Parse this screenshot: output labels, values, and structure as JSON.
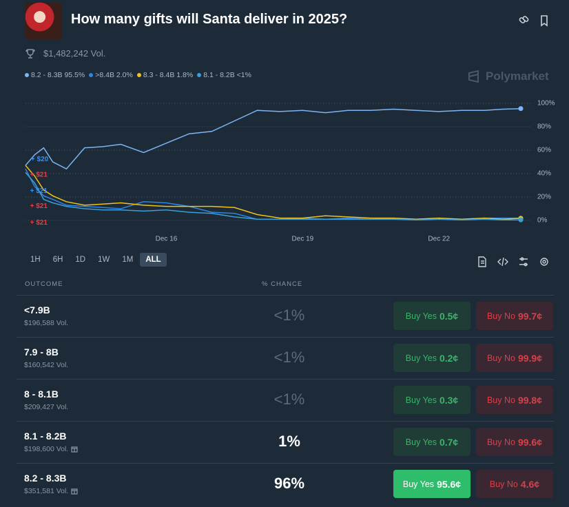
{
  "header": {
    "title": "How many gifts will Santa deliver in 2025?",
    "volume": "$1,482,242 Vol.",
    "brand": "Polymarket"
  },
  "chart_data": {
    "type": "line",
    "x": [
      12.9,
      13.1,
      13.3,
      13.5,
      13.8,
      14.2,
      14.6,
      15,
      15.5,
      16,
      16.5,
      17,
      17.5,
      18,
      18.5,
      19,
      19.5,
      20,
      20.5,
      21,
      21.5,
      22,
      22.5,
      23,
      23.4,
      23.8
    ],
    "xlim": [
      12.9,
      23.8
    ],
    "xticks": [
      {
        "value": 16,
        "label": "Dec 16"
      },
      {
        "value": 19,
        "label": "Dec 19"
      },
      {
        "value": 22,
        "label": "Dec 22"
      }
    ],
    "ylim": [
      0,
      100
    ],
    "yticks": [
      {
        "value": 0,
        "label": "0%"
      },
      {
        "value": 20,
        "label": "20%"
      },
      {
        "value": 40,
        "label": "40%"
      },
      {
        "value": 60,
        "label": "60%"
      },
      {
        "value": 80,
        "label": "80%"
      },
      {
        "value": 100,
        "label": "100%"
      }
    ],
    "grid": true,
    "series": [
      {
        "name": "8.2 - 8.3B",
        "label": "95.5%",
        "color": "#7db6f3",
        "values": [
          47,
          56,
          62,
          50,
          44,
          62,
          63,
          65,
          58,
          66,
          74,
          76,
          85,
          94,
          93,
          94,
          92,
          94,
          94,
          95,
          94,
          93,
          94,
          94,
          95,
          95.5
        ]
      },
      {
        "name": ">8.4B",
        "label": "2.0%",
        "color": "#2f86e0",
        "values": [
          44,
          29,
          21,
          18,
          13,
          12,
          11,
          10,
          16,
          15,
          12,
          7,
          6,
          1,
          1,
          2,
          1,
          2,
          1,
          2,
          1,
          2,
          1,
          2,
          2,
          2
        ]
      },
      {
        "name": "8.3 - 8.4B",
        "label": "1.8%",
        "color": "#f2c21a",
        "values": [
          47,
          38,
          26,
          21,
          16,
          13,
          14,
          15,
          13,
          12,
          12,
          12,
          11,
          5,
          2,
          2,
          4,
          3,
          2,
          2,
          1,
          2,
          1,
          2,
          1,
          1.8
        ]
      },
      {
        "name": "8.1 - 8.2B",
        "label": "<1%",
        "color": "#3a9fd8",
        "values": [
          41,
          32,
          18,
          15,
          12,
          10,
          9,
          9,
          8,
          9,
          7,
          6,
          3,
          1,
          1,
          1,
          1,
          1,
          1,
          1,
          0.5,
          1,
          0.5,
          1,
          0.5,
          0.5
        ]
      }
    ],
    "annotations": [
      {
        "label": "+ $20",
        "x": 13.02,
        "y": 52,
        "color": "#3b8ff0"
      },
      {
        "label": "+ $21",
        "x": 13.0,
        "y": 39,
        "color": "#e0414a"
      },
      {
        "label": "+ $21",
        "x": 13.0,
        "y": 25,
        "color": "#3b8ff0"
      },
      {
        "label": "+ $21",
        "x": 13.0,
        "y": 12,
        "color": "#e0414a"
      },
      {
        "label": "+ $21",
        "x": 13.0,
        "y": -2,
        "color": "#e0414a"
      }
    ]
  },
  "ranges": [
    "1H",
    "6H",
    "1D",
    "1W",
    "1M",
    "ALL"
  ],
  "table": {
    "columns": [
      "OUTCOME",
      "% CHANCE"
    ],
    "yes_label": "Buy Yes",
    "no_label": "Buy No",
    "rows": [
      {
        "name": "<7.9B",
        "volume": "$196,588 Vol.",
        "chance": "<1%",
        "yes": "0.5¢",
        "no": "99.7¢"
      },
      {
        "name": "7.9 - 8B",
        "volume": "$160,542 Vol.",
        "chance": "<1%",
        "yes": "0.2¢",
        "no": "99.9¢"
      },
      {
        "name": "8 - 8.1B",
        "volume": "$209,427 Vol.",
        "chance": "<1%",
        "yes": "0.3¢",
        "no": "99.8¢"
      },
      {
        "name": "8.1 - 8.2B",
        "volume": "$198,600 Vol.",
        "chance": "1%",
        "yes": "0.7¢",
        "no": "99.6¢"
      },
      {
        "name": "8.2 - 8.3B",
        "volume": "$351,581 Vol.",
        "chance": "96%",
        "yes": "95.6¢",
        "no": "4.6¢"
      }
    ]
  }
}
